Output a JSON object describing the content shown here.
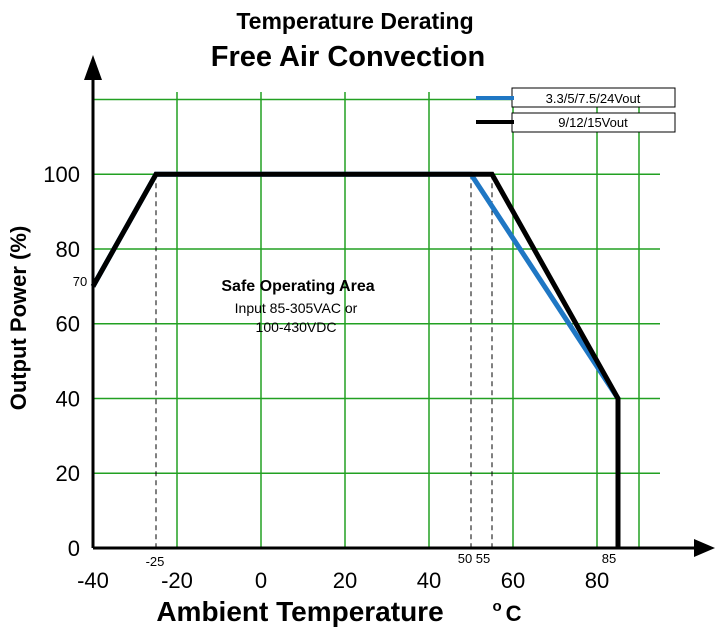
{
  "chart_data": {
    "type": "line",
    "title": "Temperature Derating",
    "subtitle": "Free Air Convection",
    "xlabel": "Ambient Temperature",
    "xlabel_unit": "o C",
    "ylabel": "Output Power (%)",
    "xlim": [
      -40,
      95
    ],
    "ylim": [
      0,
      122
    ],
    "xticks": [
      -40,
      -20,
      0,
      20,
      40,
      60,
      80
    ],
    "yticks": [
      0,
      20,
      40,
      60,
      80,
      100
    ],
    "grid": true,
    "grid_color": "#22a022",
    "legend_position": "top-right",
    "series": [
      {
        "name": "3.3/5/7.5/24Vout",
        "color": "#1f77c4",
        "x": [
          -40,
          -25,
          50,
          85,
          85
        ],
        "y": [
          70,
          100,
          100,
          40,
          0
        ]
      },
      {
        "name": "9/12/15Vout",
        "color": "#000000",
        "x": [
          -40,
          -25,
          55,
          85,
          85
        ],
        "y": [
          70,
          100,
          100,
          40,
          0
        ]
      }
    ],
    "marker_lines": [
      -25,
      50,
      55
    ],
    "special_labels": {
      "y70": "70",
      "xm25": "-25",
      "x50_55": "50 55",
      "x85": "85"
    },
    "annotation": {
      "title": "Safe Operating Area",
      "line1": "Input 85-305VAC or",
      "line2": "100-430VDC"
    }
  }
}
